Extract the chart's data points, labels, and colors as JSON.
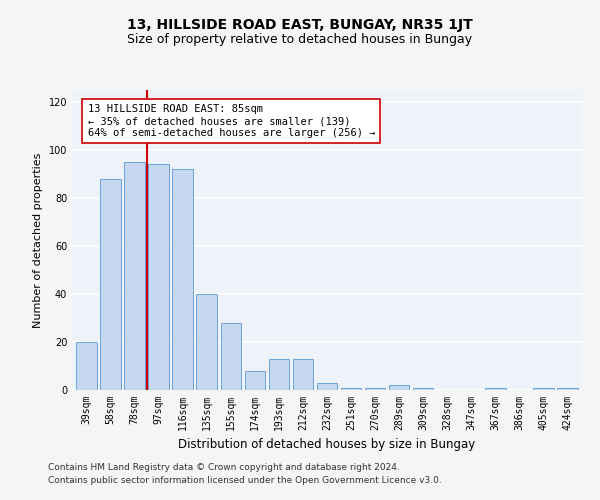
{
  "title": "13, HILLSIDE ROAD EAST, BUNGAY, NR35 1JT",
  "subtitle": "Size of property relative to detached houses in Bungay",
  "xlabel": "Distribution of detached houses by size in Bungay",
  "ylabel": "Number of detached properties",
  "categories": [
    "39sqm",
    "58sqm",
    "78sqm",
    "97sqm",
    "116sqm",
    "135sqm",
    "155sqm",
    "174sqm",
    "193sqm",
    "212sqm",
    "232sqm",
    "251sqm",
    "270sqm",
    "289sqm",
    "309sqm",
    "328sqm",
    "347sqm",
    "367sqm",
    "386sqm",
    "405sqm",
    "424sqm"
  ],
  "values": [
    20,
    88,
    95,
    94,
    92,
    40,
    28,
    8,
    13,
    13,
    3,
    1,
    1,
    2,
    1,
    0,
    0,
    1,
    0,
    1,
    1
  ],
  "bar_color": "#c5d8f0",
  "bar_edge_color": "#5b9bd5",
  "annotation_text": "13 HILLSIDE ROAD EAST: 85sqm\n← 35% of detached houses are smaller (139)\n64% of semi-detached houses are larger (256) →",
  "vline_color": "#cc0000",
  "vline_x": 2.5,
  "ylim": [
    0,
    125
  ],
  "yticks": [
    0,
    20,
    40,
    60,
    80,
    100,
    120
  ],
  "background_color": "#eef2f9",
  "grid_color": "#ffffff",
  "footer_line1": "Contains HM Land Registry data © Crown copyright and database right 2024.",
  "footer_line2": "Contains public sector information licensed under the Open Government Licence v3.0.",
  "annotation_box_color": "#ffffff",
  "annotation_box_edge": "#cc0000",
  "title_fontsize": 10,
  "subtitle_fontsize": 9,
  "tick_fontsize": 7,
  "ylabel_fontsize": 8,
  "xlabel_fontsize": 8.5,
  "annotation_fontsize": 7.5,
  "footer_fontsize": 6.5
}
